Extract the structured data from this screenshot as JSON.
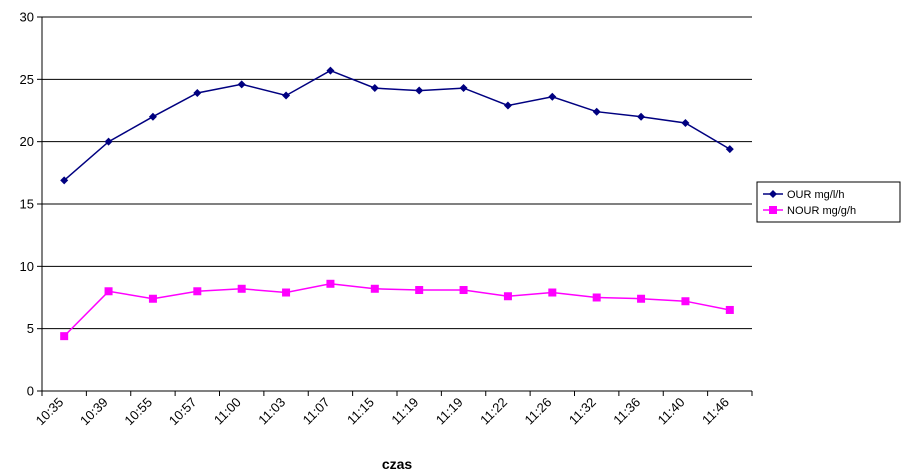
{
  "chart_data": {
    "type": "line",
    "title": "",
    "xlabel": "czas",
    "ylabel": "",
    "categories": [
      "10:35",
      "10:39",
      "10:55",
      "10:57",
      "11:00",
      "11:03",
      "11:07",
      "11:15",
      "11:19",
      "11:19",
      "11:22",
      "11:26",
      "11:32",
      "11:36",
      "11:40",
      "11:46"
    ],
    "ylim": [
      0,
      30
    ],
    "yticks": [
      0,
      5,
      10,
      15,
      20,
      25,
      30
    ],
    "grid": "horizontal",
    "legend_position": "right",
    "series": [
      {
        "name": "OUR  mg/l/h",
        "color": "#000080",
        "marker": "diamond",
        "values": [
          16.9,
          20.0,
          22.0,
          23.9,
          24.6,
          23.7,
          25.7,
          24.3,
          24.1,
          24.3,
          22.9,
          23.6,
          22.4,
          22.0,
          21.5,
          19.4
        ]
      },
      {
        "name": "NOUR  mg/g/h",
        "color": "#FF00FF",
        "marker": "square",
        "values": [
          4.4,
          8.0,
          7.4,
          8.0,
          8.2,
          7.9,
          8.6,
          8.2,
          8.1,
          8.1,
          7.6,
          7.9,
          7.5,
          7.4,
          7.2,
          6.5
        ]
      }
    ]
  }
}
